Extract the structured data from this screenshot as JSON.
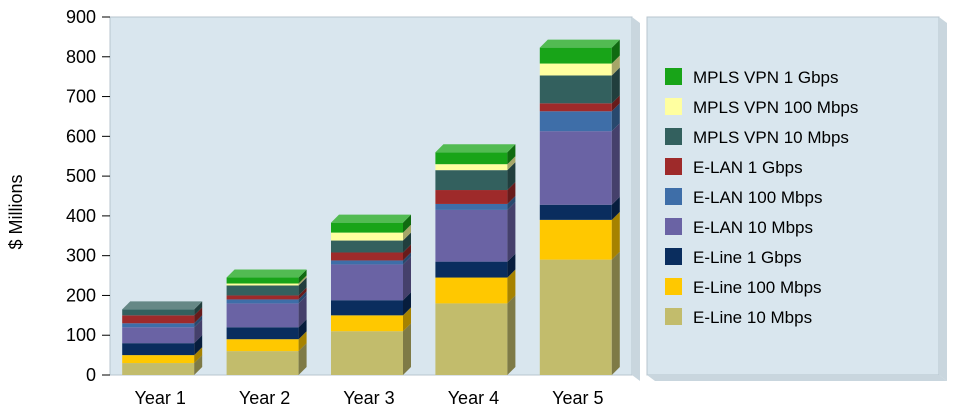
{
  "chart_data": {
    "type": "bar",
    "stacked": true,
    "ylabel": "$ Millions",
    "xlabel": "",
    "ylim": [
      0,
      900
    ],
    "yticks": [
      0,
      100,
      200,
      300,
      400,
      500,
      600,
      700,
      800,
      900
    ],
    "categories": [
      "Year 1",
      "Year 2",
      "Year 3",
      "Year 4",
      "Year 5"
    ],
    "legend_position": "right",
    "series": [
      {
        "name": "E-Line 10 Mbps",
        "color": "#c2bc6c",
        "values": [
          30,
          60,
          110,
          180,
          290
        ]
      },
      {
        "name": "E-Line 100 Mbps",
        "color": "#ffc800",
        "values": [
          20,
          30,
          40,
          65,
          100
        ]
      },
      {
        "name": "E-Line 1 Gbps",
        "color": "#0a2d5e",
        "values": [
          30,
          30,
          38,
          40,
          38
        ]
      },
      {
        "name": "E-LAN 10 Mbps",
        "color": "#6a63a4",
        "values": [
          40,
          60,
          90,
          130,
          185
        ]
      },
      {
        "name": "E-LAN 100 Mbps",
        "color": "#3e6ea8",
        "values": [
          10,
          10,
          10,
          15,
          50
        ]
      },
      {
        "name": "E-LAN 1 Gbps",
        "color": "#9e2a2a",
        "values": [
          20,
          10,
          20,
          35,
          20
        ]
      },
      {
        "name": "MPLS VPN 10 Mbps",
        "color": "#33605e",
        "values": [
          15,
          25,
          30,
          50,
          70
        ]
      },
      {
        "name": "MPLS VPN 100 Mbps",
        "color": "#ffffa0",
        "values": [
          0,
          5,
          20,
          15,
          30
        ]
      },
      {
        "name": "MPLS VPN 1 Gbps",
        "color": "#18a418",
        "values": [
          0,
          15,
          25,
          30,
          40
        ]
      }
    ],
    "legend_order": [
      8,
      7,
      6,
      5,
      4,
      3,
      2,
      1,
      0
    ],
    "plot_background": "#d9e6ee",
    "legend_background": "#d9e6ee"
  }
}
